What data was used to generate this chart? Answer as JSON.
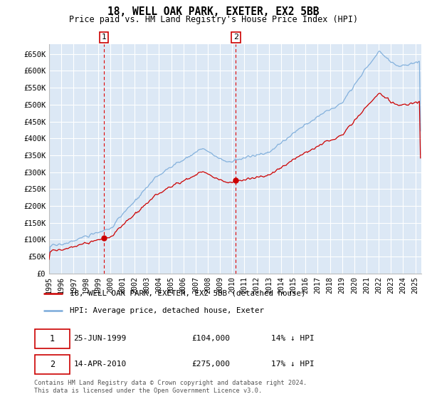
{
  "title": "18, WELL OAK PARK, EXETER, EX2 5BB",
  "subtitle": "Price paid vs. HM Land Registry's House Price Index (HPI)",
  "ylabel_ticks": [
    "£0",
    "£50K",
    "£100K",
    "£150K",
    "£200K",
    "£250K",
    "£300K",
    "£350K",
    "£400K",
    "£450K",
    "£500K",
    "£550K",
    "£600K",
    "£650K"
  ],
  "ytick_values": [
    0,
    50000,
    100000,
    150000,
    200000,
    250000,
    300000,
    350000,
    400000,
    450000,
    500000,
    550000,
    600000,
    650000
  ],
  "ylim": [
    0,
    680000
  ],
  "xlim_start": 1995.0,
  "xlim_end": 2025.5,
  "background_color": "#dce8f5",
  "grid_color": "#ffffff",
  "red_line_color": "#cc0000",
  "blue_line_color": "#7aabda",
  "marker1_date": 1999.48,
  "marker1_value": 104000,
  "marker2_date": 2010.29,
  "marker2_value": 275000,
  "vline_color": "#dd0000",
  "legend_label_red": "18, WELL OAK PARK, EXETER, EX2 5BB (detached house)",
  "legend_label_blue": "HPI: Average price, detached house, Exeter",
  "footer": "Contains HM Land Registry data © Crown copyright and database right 2024.\nThis data is licensed under the Open Government Licence v3.0.",
  "xtick_years": [
    1995,
    1996,
    1997,
    1998,
    1999,
    2000,
    2001,
    2002,
    2003,
    2004,
    2005,
    2006,
    2007,
    2008,
    2009,
    2010,
    2011,
    2012,
    2013,
    2014,
    2015,
    2016,
    2017,
    2018,
    2019,
    2020,
    2021,
    2022,
    2023,
    2024,
    2025
  ]
}
